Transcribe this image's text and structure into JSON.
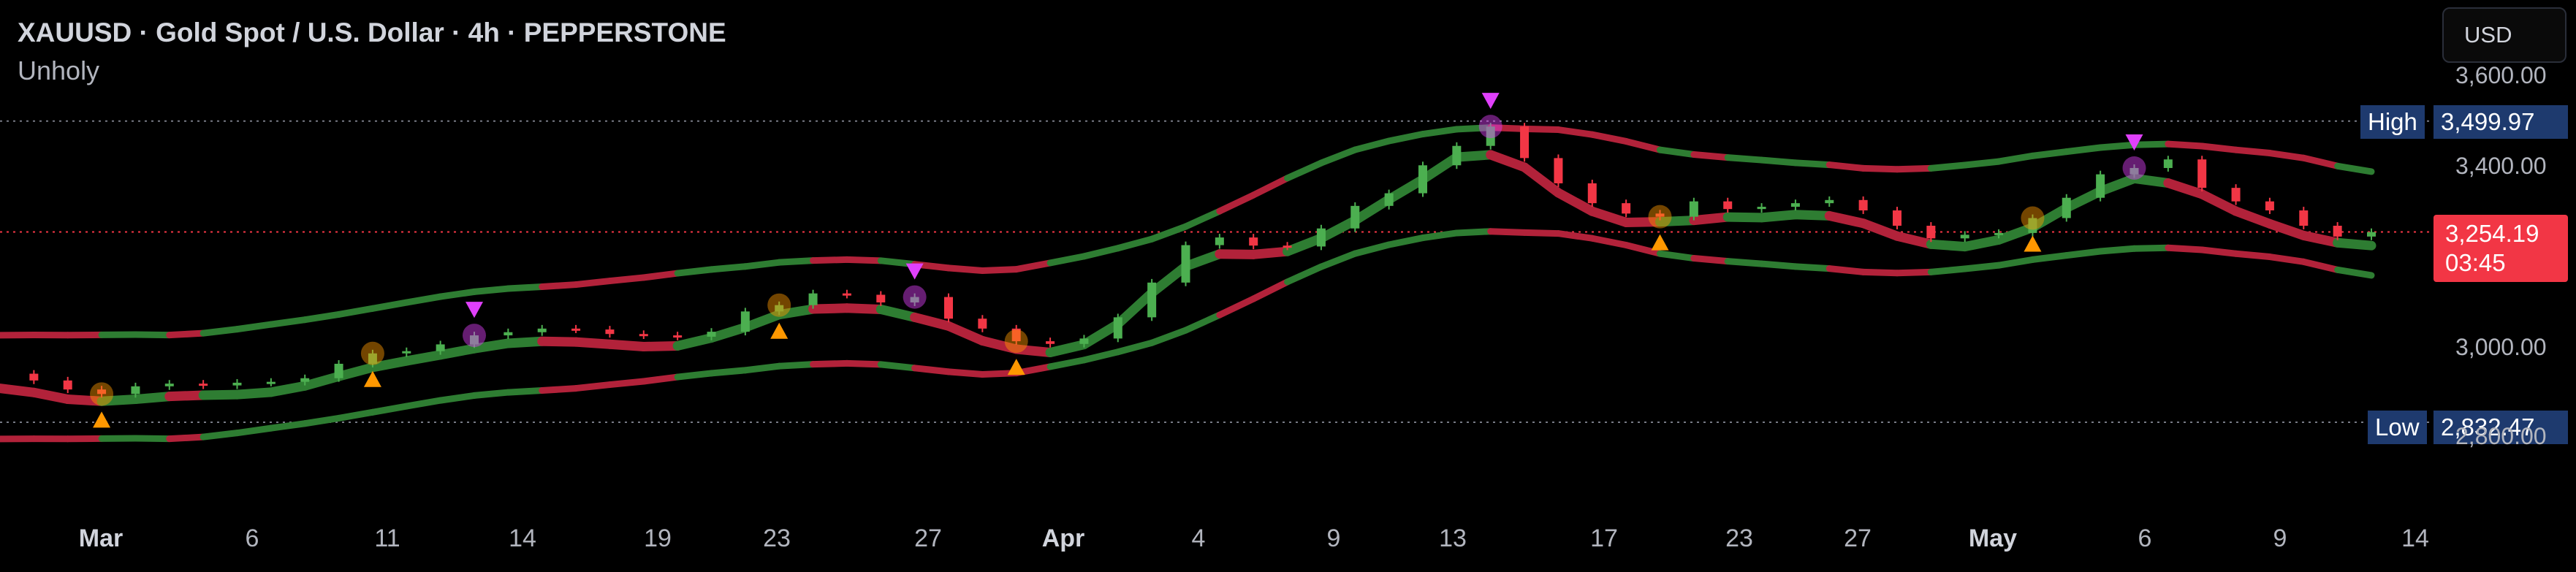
{
  "header": {
    "title": "XAUUSD · Gold Spot / U.S. Dollar · 4h · PEPPERSTONE",
    "indicator": "Unholy"
  },
  "currency_button": "USD",
  "markers": {
    "high_label": "High",
    "high_value": "3,499.97",
    "low_label": "Low",
    "low_value": "2,832.47",
    "last_price": "3,254.19",
    "countdown": "03:45"
  },
  "colors": {
    "up": "#4caf50",
    "down": "#f23645",
    "band_up": "#2e7d32",
    "band_down": "#b2223a",
    "highlight": "#e040fb",
    "signal": "#ff9800"
  },
  "chart_data": {
    "type": "line",
    "y_ticks": [
      "3,600.00",
      "3,400.00",
      "3,000.00",
      "2,800.00"
    ],
    "ylim": [
      2750,
      3620
    ],
    "x_ticks": [
      {
        "label": "Mar",
        "bold": true
      },
      {
        "label": "6",
        "bold": false
      },
      {
        "label": "11",
        "bold": false
      },
      {
        "label": "14",
        "bold": false
      },
      {
        "label": "19",
        "bold": false
      },
      {
        "label": "23",
        "bold": false
      },
      {
        "label": "27",
        "bold": false
      },
      {
        "label": "Apr",
        "bold": true
      },
      {
        "label": "4",
        "bold": false
      },
      {
        "label": "9",
        "bold": false
      },
      {
        "label": "13",
        "bold": false
      },
      {
        "label": "17",
        "bold": false
      },
      {
        "label": "23",
        "bold": false
      },
      {
        "label": "27",
        "bold": false
      },
      {
        "label": "May",
        "bold": true
      },
      {
        "label": "6",
        "bold": false
      },
      {
        "label": "9",
        "bold": false
      },
      {
        "label": "14",
        "bold": false
      }
    ],
    "series": [
      {
        "values": [
          2940,
          2925,
          2905,
          2895,
          2912,
          2918,
          2914,
          2920,
          2922,
          2930,
          2962,
          2985,
          2990,
          3005,
          3025,
          3032,
          3040,
          3038,
          3028,
          3025,
          3022,
          3033,
          3078,
          3092,
          3118,
          3115,
          3098,
          3110,
          3062,
          3040,
          3012,
          3006,
          3018,
          3065,
          3142,
          3225,
          3242,
          3224,
          3222,
          3262,
          3312,
          3340,
          3402,
          3445,
          3488,
          3418,
          3362,
          3318,
          3295,
          3288,
          3322,
          3305,
          3310,
          3318,
          3325,
          3302,
          3268,
          3240,
          3248,
          3252,
          3285,
          3330,
          3382,
          3396,
          3415,
          3352,
          3322,
          3302,
          3268,
          3244,
          3254
        ]
      }
    ]
  }
}
